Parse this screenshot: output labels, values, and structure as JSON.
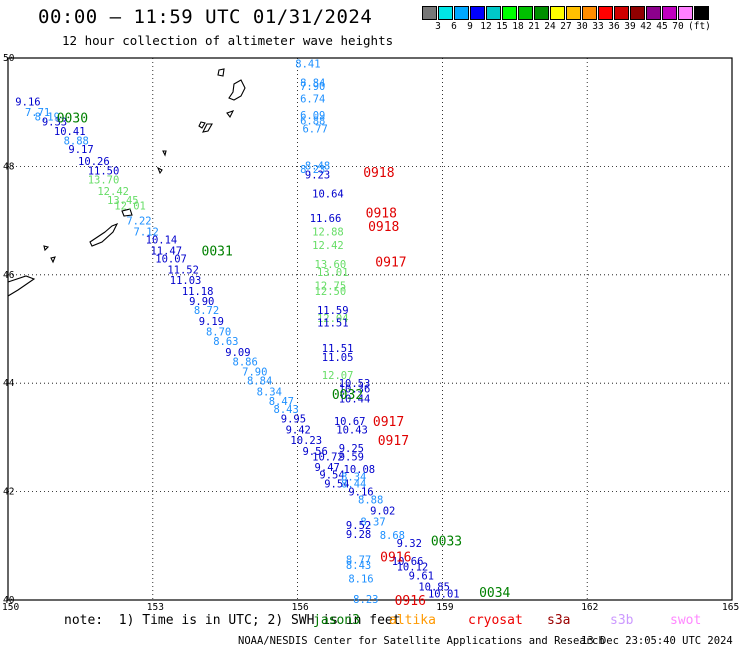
{
  "header": {
    "title": "00:00 – 11:59 UTC 01/31/2024",
    "subtitle": "12 hour collection of altimeter wave heights"
  },
  "colorbar": {
    "colors": [
      "#777777",
      "#00e6e6",
      "#00a8ff",
      "#0000ff",
      "#00c8c8",
      "#00ff00",
      "#00c000",
      "#009000",
      "#ffff00",
      "#ffc000",
      "#ff8c00",
      "#ff0000",
      "#d00000",
      "#900000",
      "#8c008c",
      "#c000c0",
      "#ff80ff",
      "#000000"
    ],
    "labels": [
      "3",
      "6",
      "9",
      "12",
      "15",
      "18",
      "21",
      "24",
      "27",
      "30",
      "33",
      "36",
      "39",
      "42",
      "45",
      "70"
    ],
    "unit": "(ft)"
  },
  "map": {
    "x_ticks": [
      "150",
      "153",
      "156",
      "159",
      "162",
      "165"
    ],
    "y_ticks": [
      "50",
      "48",
      "46",
      "44",
      "42",
      "40"
    ]
  },
  "chart_data": {
    "type": "map",
    "lon_range": [
      150,
      165
    ],
    "lat_range": [
      40,
      50
    ],
    "grid": true,
    "tracks": [
      {
        "name": "0030",
        "label_lon": 151.3,
        "label_lat": 48.9,
        "label_color": "#008000",
        "points": [
          {
            "lon": 150.4,
            "lat": 49.2,
            "v": "9.16",
            "c": "#0000cc"
          },
          {
            "lon": 150.6,
            "lat": 49.0,
            "v": "7.71",
            "c": "#1e90ff"
          },
          {
            "lon": 150.8,
            "lat": 48.92,
            "v": "8.19",
            "c": "#1e90ff"
          },
          {
            "lon": 150.95,
            "lat": 48.83,
            "v": "9.33",
            "c": "#0000cc"
          },
          {
            "lon": 151.2,
            "lat": 48.65,
            "v": "10.41",
            "c": "#0000cc"
          },
          {
            "lon": 151.4,
            "lat": 48.48,
            "v": "8.88",
            "c": "#1e90ff"
          },
          {
            "lon": 151.5,
            "lat": 48.32,
            "v": "9.17",
            "c": "#0000cc"
          },
          {
            "lon": 151.7,
            "lat": 48.1,
            "v": "10.26",
            "c": "#0000cc"
          },
          {
            "lon": 151.9,
            "lat": 47.92,
            "v": "11.50",
            "c": "#0000cc"
          },
          {
            "lon": 151.9,
            "lat": 47.76,
            "v": "13.70",
            "c": "#66dd66"
          },
          {
            "lon": 152.1,
            "lat": 47.55,
            "v": "12.42",
            "c": "#66dd66"
          },
          {
            "lon": 152.3,
            "lat": 47.38,
            "v": "13.45",
            "c": "#66dd66"
          },
          {
            "lon": 152.45,
            "lat": 47.28,
            "v": "12.01",
            "c": "#66dd66"
          },
          {
            "lon": 152.7,
            "lat": 47.0,
            "v": "7.22",
            "c": "#1e90ff"
          },
          {
            "lon": 152.85,
            "lat": 46.8,
            "v": "7.12",
            "c": "#1e90ff"
          },
          {
            "lon": 153.1,
            "lat": 46.65,
            "v": "10.14",
            "c": "#0000cc"
          },
          {
            "lon": 153.2,
            "lat": 46.45,
            "v": "11.47",
            "c": "#0000cc"
          },
          {
            "lon": 153.3,
            "lat": 46.3,
            "v": "10.07",
            "c": "#0000cc"
          },
          {
            "lon": 153.55,
            "lat": 46.1,
            "v": "11.52",
            "c": "#0000cc"
          },
          {
            "lon": 153.6,
            "lat": 45.9,
            "v": "11.03",
            "c": "#0000cc"
          },
          {
            "lon": 153.85,
            "lat": 45.7,
            "v": "11.18",
            "c": "#0000cc"
          },
          {
            "lon": 154.0,
            "lat": 45.52,
            "v": "9.90",
            "c": "#0000cc"
          },
          {
            "lon": 154.1,
            "lat": 45.35,
            "v": "8.72",
            "c": "#1e90ff"
          },
          {
            "lon": 154.2,
            "lat": 45.15,
            "v": "9.19",
            "c": "#0000cc"
          },
          {
            "lon": 154.35,
            "lat": 44.95,
            "v": "8.70",
            "c": "#1e90ff"
          },
          {
            "lon": 154.5,
            "lat": 44.78,
            "v": "8.63",
            "c": "#1e90ff"
          },
          {
            "lon": 154.75,
            "lat": 44.58,
            "v": "9.09",
            "c": "#0000cc"
          },
          {
            "lon": 154.9,
            "lat": 44.4,
            "v": "8.86",
            "c": "#1e90ff"
          },
          {
            "lon": 155.1,
            "lat": 44.22,
            "v": "7.90",
            "c": "#1e90ff"
          },
          {
            "lon": 155.2,
            "lat": 44.05,
            "v": "8.84",
            "c": "#1e90ff"
          },
          {
            "lon": 155.4,
            "lat": 43.85,
            "v": "8.34",
            "c": "#1e90ff"
          },
          {
            "lon": 155.65,
            "lat": 43.67,
            "v": "8.47",
            "c": "#1e90ff"
          },
          {
            "lon": 155.75,
            "lat": 43.52,
            "v": "8.43",
            "c": "#1e90ff"
          },
          {
            "lon": 155.9,
            "lat": 43.35,
            "v": "9.95",
            "c": "#0000cc"
          },
          {
            "lon": 156.0,
            "lat": 43.15,
            "v": "9.42",
            "c": "#0000cc"
          },
          {
            "lon": 156.1,
            "lat": 42.95,
            "v": "10.23",
            "c": "#0000cc"
          },
          {
            "lon": 156.35,
            "lat": 42.75,
            "v": "9.56",
            "c": "#0000cc"
          },
          {
            "lon": 156.55,
            "lat": 42.65,
            "v": "10.72",
            "c": "#0000cc"
          },
          {
            "lon": 156.6,
            "lat": 42.45,
            "v": "9.47",
            "c": "#0000cc"
          },
          {
            "lon": 156.7,
            "lat": 42.32,
            "v": "9.54",
            "c": "#0000cc"
          },
          {
            "lon": 156.8,
            "lat": 42.15,
            "v": "9.54",
            "c": "#0000cc"
          }
        ]
      },
      {
        "name": "0031",
        "label_lon": 154.3,
        "label_lat": 46.45,
        "label_color": "#008000",
        "points": []
      },
      {
        "name": "0032",
        "label_lon": 157.0,
        "label_lat": 43.8,
        "label_color": "#008000",
        "points": [
          {
            "lon": 157.1,
            "lat": 44.0,
            "v": "10.53",
            "c": "#0000cc"
          },
          {
            "lon": 157.1,
            "lat": 43.9,
            "v": "10.36",
            "c": "#0000cc"
          },
          {
            "lon": 157.1,
            "lat": 43.72,
            "v": "10.44",
            "c": "#0000cc"
          },
          {
            "lon": 157.0,
            "lat": 43.3,
            "v": "10.67",
            "c": "#0000cc"
          },
          {
            "lon": 157.05,
            "lat": 43.15,
            "v": "10.43",
            "c": "#0000cc"
          },
          {
            "lon": 157.1,
            "lat": 42.8,
            "v": "9.25",
            "c": "#0000cc"
          },
          {
            "lon": 157.1,
            "lat": 42.65,
            "v": "9.59",
            "c": "#0000cc"
          },
          {
            "lon": 157.2,
            "lat": 42.42,
            "v": "10.08",
            "c": "#0000cc"
          },
          {
            "lon": 157.15,
            "lat": 42.28,
            "v": "8.34",
            "c": "#1e90ff"
          },
          {
            "lon": 157.15,
            "lat": 42.15,
            "v": "8.44",
            "c": "#1e90ff"
          },
          {
            "lon": 157.3,
            "lat": 42.0,
            "v": "9.16",
            "c": "#0000cc"
          },
          {
            "lon": 157.5,
            "lat": 41.85,
            "v": "8.88",
            "c": "#1e90ff"
          },
          {
            "lon": 157.75,
            "lat": 41.65,
            "v": "9.02",
            "c": "#0000cc"
          },
          {
            "lon": 157.55,
            "lat": 41.45,
            "v": "8.37",
            "c": "#1e90ff"
          },
          {
            "lon": 157.25,
            "lat": 41.38,
            "v": "9.52",
            "c": "#0000cc"
          },
          {
            "lon": 157.25,
            "lat": 41.22,
            "v": "9.28",
            "c": "#0000cc"
          },
          {
            "lon": 157.95,
            "lat": 41.2,
            "v": "8.68",
            "c": "#1e90ff"
          }
        ]
      },
      {
        "name": "0033",
        "label_lon": 159.05,
        "label_lat": 41.1,
        "label_color": "#008000",
        "points": [
          {
            "lon": 158.3,
            "lat": 41.05,
            "v": "9.32",
            "c": "#0000cc"
          },
          {
            "lon": 158.2,
            "lat": 40.72,
            "v": "10.66",
            "c": "#0000cc"
          },
          {
            "lon": 158.3,
            "lat": 40.62,
            "v": "10.12",
            "c": "#0000cc"
          },
          {
            "lon": 158.55,
            "lat": 40.45,
            "v": "9.61",
            "c": "#0000cc"
          },
          {
            "lon": 158.75,
            "lat": 40.25,
            "v": "10.85",
            "c": "#0000cc"
          },
          {
            "lon": 158.95,
            "lat": 40.12,
            "v": "10.01",
            "c": "#0000cc"
          }
        ]
      },
      {
        "name": "0034",
        "label_lon": 160.05,
        "label_lat": 40.15,
        "label_color": "#008000",
        "points": []
      },
      {
        "name": "0918",
        "label_lon": 157.65,
        "label_lat": 47.9,
        "label_color": "#e00000",
        "points": [
          {
            "lon": 156.2,
            "lat": 49.9,
            "v": "8.41",
            "c": "#1e90ff"
          },
          {
            "lon": 156.3,
            "lat": 49.55,
            "v": "8.84",
            "c": "#1e90ff"
          },
          {
            "lon": 156.3,
            "lat": 49.48,
            "v": "7.90",
            "c": "#1e90ff"
          },
          {
            "lon": 156.3,
            "lat": 49.25,
            "v": "6.74",
            "c": "#1e90ff"
          },
          {
            "lon": 156.3,
            "lat": 48.95,
            "v": "6.09",
            "c": "#1e90ff"
          },
          {
            "lon": 156.3,
            "lat": 48.85,
            "v": "6.88",
            "c": "#1e90ff"
          },
          {
            "lon": 156.35,
            "lat": 48.7,
            "v": "6.77",
            "c": "#1e90ff"
          },
          {
            "lon": 156.4,
            "lat": 48.02,
            "v": "8.48",
            "c": "#1e90ff"
          },
          {
            "lon": 156.3,
            "lat": 47.95,
            "v": "8.23",
            "c": "#1e90ff"
          },
          {
            "lon": 156.4,
            "lat": 47.85,
            "v": "9.23",
            "c": "#0000cc"
          },
          {
            "lon": 156.55,
            "lat": 47.5,
            "v": "10.64",
            "c": "#0000cc"
          }
        ]
      },
      {
        "name": "0918",
        "label_lon": 157.7,
        "label_lat": 47.15,
        "label_color": "#e00000",
        "points": [
          {
            "lon": 156.5,
            "lat": 47.05,
            "v": "11.66",
            "c": "#0000cc"
          }
        ]
      },
      {
        "name": "0918",
        "label_lon": 157.75,
        "label_lat": 46.9,
        "label_color": "#e00000",
        "points": [
          {
            "lon": 156.55,
            "lat": 46.8,
            "v": "12.88",
            "c": "#66dd66"
          },
          {
            "lon": 156.55,
            "lat": 46.55,
            "v": "12.42",
            "c": "#66dd66"
          }
        ]
      },
      {
        "name": "0917",
        "label_lon": 157.9,
        "label_lat": 46.25,
        "label_color": "#e00000",
        "points": [
          {
            "lon": 156.6,
            "lat": 46.2,
            "v": "13.60",
            "c": "#66dd66"
          },
          {
            "lon": 156.65,
            "lat": 46.05,
            "v": "13.01",
            "c": "#66dd66"
          },
          {
            "lon": 156.6,
            "lat": 45.8,
            "v": "12.75",
            "c": "#66dd66"
          },
          {
            "lon": 156.6,
            "lat": 45.7,
            "v": "12.50",
            "c": "#66dd66"
          },
          {
            "lon": 156.65,
            "lat": 45.35,
            "v": "11.59",
            "c": "#0000cc"
          },
          {
            "lon": 156.65,
            "lat": 45.2,
            "v": "12.04",
            "c": "#66dd66"
          },
          {
            "lon": 156.65,
            "lat": 45.12,
            "v": "11.51",
            "c": "#0000cc"
          },
          {
            "lon": 156.75,
            "lat": 44.65,
            "v": "11.51",
            "c": "#0000cc"
          },
          {
            "lon": 156.75,
            "lat": 44.48,
            "v": "11.05",
            "c": "#0000cc"
          },
          {
            "lon": 156.75,
            "lat": 44.15,
            "v": "12.07",
            "c": "#66dd66"
          }
        ]
      },
      {
        "name": "0917",
        "label_lon": 157.85,
        "label_lat": 43.3,
        "label_color": "#e00000",
        "points": []
      },
      {
        "name": "0917",
        "label_lon": 157.95,
        "label_lat": 42.95,
        "label_color": "#e00000",
        "points": []
      },
      {
        "name": "0916",
        "label_lon": 158.0,
        "label_lat": 40.8,
        "label_color": "#e00000",
        "points": [
          {
            "lon": 157.25,
            "lat": 40.75,
            "v": "8.77",
            "c": "#1e90ff"
          },
          {
            "lon": 157.25,
            "lat": 40.65,
            "v": "8.43",
            "c": "#1e90ff"
          },
          {
            "lon": 157.3,
            "lat": 40.4,
            "v": "8.16",
            "c": "#1e90ff"
          }
        ]
      },
      {
        "name": "0916",
        "label_lon": 158.3,
        "label_lat": 40.0,
        "label_color": "#e00000",
        "points": [
          {
            "lon": 157.4,
            "lat": 40.02,
            "v": "8.23",
            "c": "#1e90ff"
          }
        ]
      }
    ]
  },
  "footer": {
    "note": "note:  1) Time is in UTC; 2) SWH is in feet",
    "satellites": [
      {
        "label": "jason3",
        "color": "#007700"
      },
      {
        "label": "altika",
        "color": "#ff9900"
      },
      {
        "label": "cryosat",
        "color": "#ee0000"
      },
      {
        "label": "s3a",
        "color": "#990000"
      },
      {
        "label": "s3b",
        "color": "#cc99ff"
      },
      {
        "label": "swot",
        "color": "#ff88ff"
      }
    ],
    "credit": "NOAA/NESDIS Center for Satellite Applications and Research",
    "date": "13 Dec 23:05:40 UTC 2024"
  }
}
